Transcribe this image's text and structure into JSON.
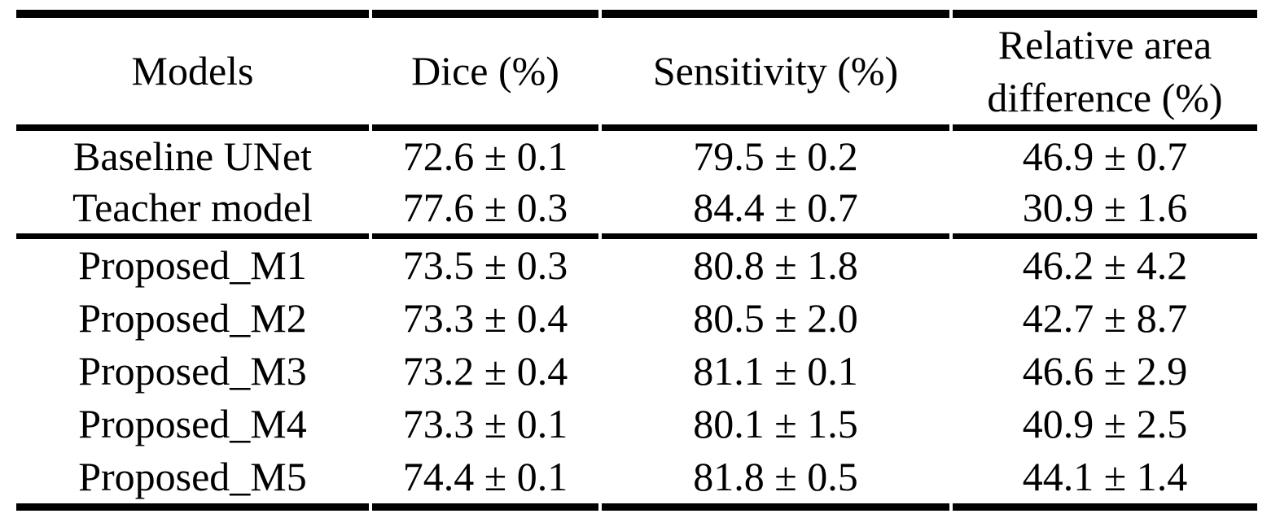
{
  "table": {
    "header": {
      "models": "Models",
      "dice": "Dice (%)",
      "sensitivity": "Sensitivity (%)",
      "relative_area_line1": "Relative area",
      "relative_area_line2": "difference (%)"
    },
    "baseline_rows": [
      {
        "model": "Baseline UNet",
        "dice": "72.6 ± 0.1",
        "sensitivity": "79.5 ± 0.2",
        "relative_area_difference": "46.9 ± 0.7"
      },
      {
        "model": "Teacher model",
        "dice": "77.6 ± 0.3",
        "sensitivity": "84.4 ± 0.7",
        "relative_area_difference": "30.9 ± 1.6"
      }
    ],
    "proposed_rows": [
      {
        "model": "Proposed_M1",
        "dice": "73.5 ± 0.3",
        "sensitivity": "80.8 ± 1.8",
        "relative_area_difference": "46.2 ± 4.2"
      },
      {
        "model": "Proposed_M2",
        "dice": "73.3 ± 0.4",
        "sensitivity": "80.5 ± 2.0",
        "relative_area_difference": "42.7 ± 8.7"
      },
      {
        "model": "Proposed_M3",
        "dice": "73.2 ± 0.4",
        "sensitivity": "81.1 ± 0.1",
        "relative_area_difference": "46.6 ± 2.9"
      },
      {
        "model": "Proposed_M4",
        "dice": "73.3 ± 0.1",
        "sensitivity": "80.1 ± 1.5",
        "relative_area_difference": "40.9 ± 2.5"
      },
      {
        "model": "Proposed_M5",
        "dice": "74.4 ± 0.1",
        "sensitivity": "81.8 ± 0.5",
        "relative_area_difference": "44.1 ± 1.4"
      }
    ],
    "colors": {
      "text": "#000000",
      "rule": "#000000",
      "background": "#ffffff"
    }
  },
  "chart_data": {
    "type": "table",
    "columns": [
      "Models",
      "Dice (%)",
      "Sensitivity (%)",
      "Relative area difference (%)"
    ],
    "rows": [
      [
        "Baseline UNet",
        "72.6 ± 0.1",
        "79.5 ± 0.2",
        "46.9 ± 0.7"
      ],
      [
        "Teacher model",
        "77.6 ± 0.3",
        "84.4 ± 0.7",
        "30.9 ± 1.6"
      ],
      [
        "Proposed_M1",
        "73.5 ± 0.3",
        "80.8 ± 1.8",
        "46.2 ± 4.2"
      ],
      [
        "Proposed_M2",
        "73.3 ± 0.4",
        "80.5 ± 2.0",
        "42.7 ± 8.7"
      ],
      [
        "Proposed_M3",
        "73.2 ± 0.4",
        "81.1 ± 0.1",
        "46.6 ± 2.9"
      ],
      [
        "Proposed_M4",
        "73.3 ± 0.1",
        "80.1 ± 1.5",
        "40.9 ± 2.5"
      ],
      [
        "Proposed_M5",
        "74.4 ± 0.1",
        "81.8 ± 0.5",
        "44.1 ± 1.4"
      ]
    ]
  }
}
